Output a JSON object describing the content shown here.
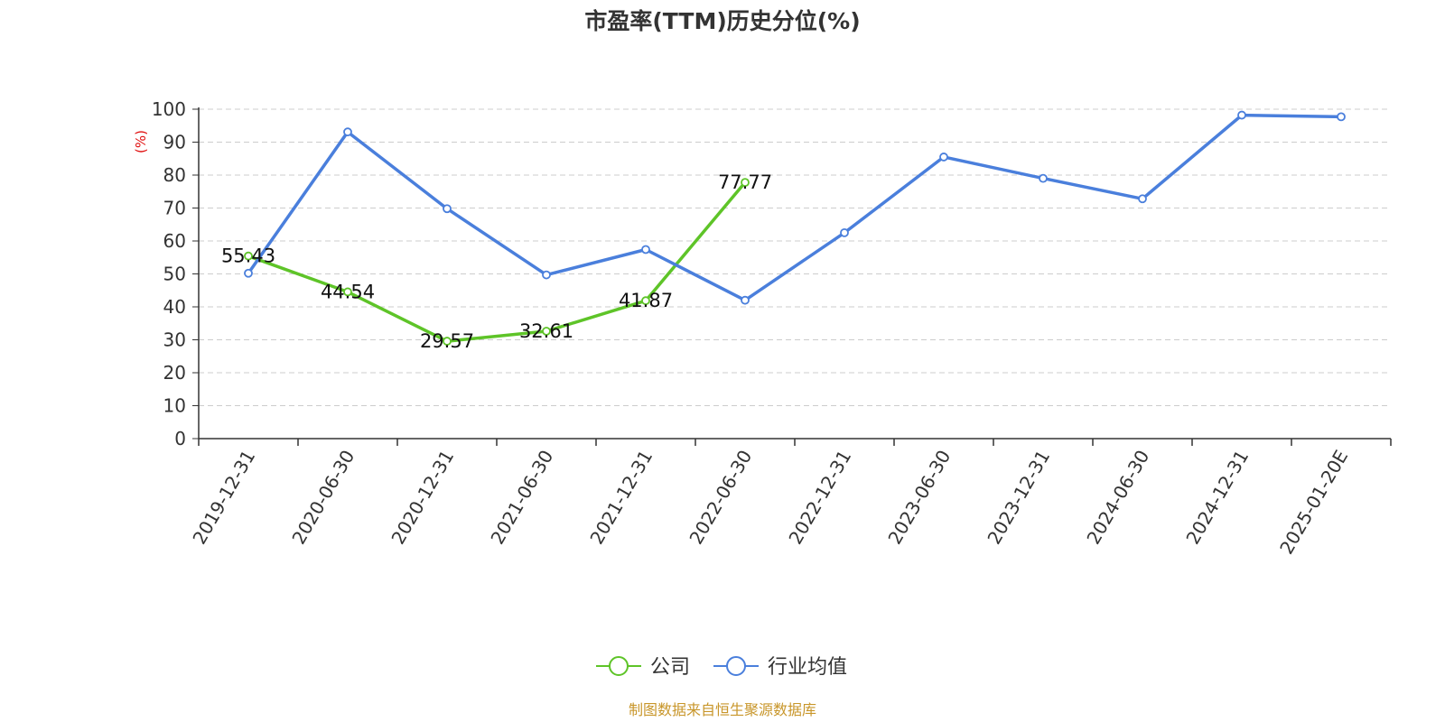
{
  "chart_data": {
    "type": "line",
    "title": "市盈率(TTM)历史分位(%)",
    "ylabel": "(%)",
    "ylim": [
      0,
      100
    ],
    "yticks": [
      0,
      10,
      20,
      30,
      40,
      50,
      60,
      70,
      80,
      90,
      100
    ],
    "grid": true,
    "legend_position": "bottom-center",
    "categories": [
      "2019-12-31",
      "2020-06-30",
      "2020-12-31",
      "2021-06-30",
      "2021-12-31",
      "2022-06-30",
      "2022-12-31",
      "2023-06-30",
      "2023-12-31",
      "2024-06-30",
      "2024-12-31",
      "2025-01-20E"
    ],
    "series": [
      {
        "name": "公司",
        "color": "#5ec428",
        "show_labels": true,
        "values": [
          55.43,
          44.54,
          29.57,
          32.61,
          41.87,
          77.77,
          null,
          null,
          null,
          null,
          null,
          null
        ]
      },
      {
        "name": "行业均值",
        "color": "#4a7fdc",
        "show_labels": false,
        "values": [
          50.2,
          93.1,
          69.8,
          49.7,
          57.4,
          42.0,
          62.5,
          85.5,
          79.0,
          72.8,
          98.2,
          97.7
        ]
      }
    ]
  },
  "footer": {
    "source": "制图数据来自恒生聚源数据库"
  }
}
